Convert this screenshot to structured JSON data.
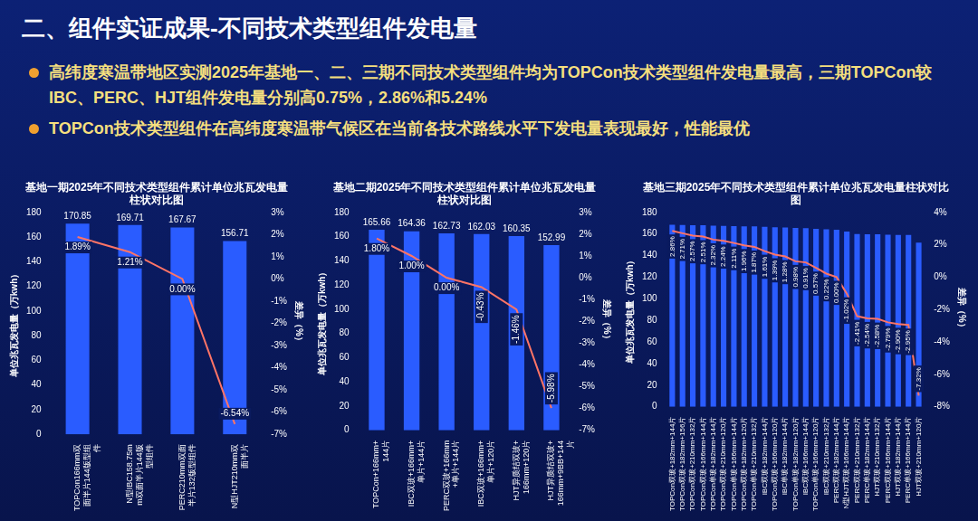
{
  "header": {
    "title": "二、组件实证成果-不同技术类型组件发电量"
  },
  "bullets": [
    "高纬度寒温带地区实测2025年基地一、二、三期不同技术类型组件均为TOPCon技术类型组件发电量最高，三期TOPCon较IBC、PERC、HJT组件发电量分别高0.75%，2.86%和5.24%",
    "TOPCon技术类型组件在高纬度寒温带气候区在当前各技术路线水平下发电量表现最好，性能最优"
  ],
  "chart_data": [
    {
      "type": "bar",
      "title": "基地一期2025年不同技术类型组件累计单位兆瓦发电量柱状对比图",
      "y_label": "单位兆瓦发电量（万kwh）",
      "y2_label": "差异（%）",
      "categories": [
        "TOPCon166mm双面半片144版型组件",
        "N型IBC158.75mm双面半片144版型组件",
        "PERC210mm双面半片132版型组件",
        "N型HJT210mm双面半片"
      ],
      "series": [
        {
          "type": "bar",
          "color": "#2a5cff",
          "values": [
            170.85,
            169.71,
            167.67,
            156.71
          ],
          "data_labels": true
        },
        {
          "type": "line",
          "axis": "y2",
          "color": "#ff7466",
          "marker": "none",
          "line_style": "solid",
          "data_labels": true,
          "values": [
            1.89,
            1.21,
            0,
            -6.54
          ],
          "value_labels": [
            "1.89%",
            "1.21%",
            "0.00%",
            "-6.54%"
          ]
        }
      ],
      "ylim": [
        0,
        180
      ],
      "yticks": [
        0,
        20,
        40,
        60,
        80,
        100,
        120,
        140,
        160,
        180
      ],
      "y2lim": [
        -7,
        3
      ],
      "y2ticks": [
        {
          "value": -7,
          "label": "-7%"
        },
        {
          "value": -6,
          "label": "-6%"
        },
        {
          "value": -5,
          "label": "-5%"
        },
        {
          "value": -4,
          "label": "-4%"
        },
        {
          "value": -3,
          "label": "-3%"
        },
        {
          "value": -2,
          "label": "-2%"
        },
        {
          "value": -1,
          "label": "-1%"
        },
        {
          "value": 0,
          "label": "0%"
        },
        {
          "value": 1,
          "label": "1%"
        },
        {
          "value": 2,
          "label": "2%"
        },
        {
          "value": 3,
          "label": "3%"
        }
      ],
      "grid": false
    },
    {
      "type": "bar",
      "title": "基地二期2025年不同技术类型组件累计单位兆瓦发电量柱状对比图",
      "y_label": "单位兆瓦发电量（万kwh）",
      "y2_label": "差异（%）",
      "categories": [
        "TOPCon+166mm+144片",
        "IBC双玻+166mm+单片+144片",
        "PERC双玻+166mm+单片+144片",
        "IBC双玻+166mm+单片+120片",
        "HJT异质结双玻+166mm+120片",
        "HJT异质结双玻+166mm+9BB+144片"
      ],
      "series": [
        {
          "type": "bar",
          "color": "#2a5cff",
          "values": [
            165.66,
            164.36,
            162.73,
            162.03,
            160.35,
            152.99
          ],
          "data_labels": true
        },
        {
          "type": "line",
          "axis": "y2",
          "color": "#ff7466",
          "marker": "none",
          "line_style": "solid",
          "data_labels": true,
          "values": [
            1.8,
            1.0,
            0,
            -0.43,
            -1.46,
            -5.98
          ],
          "value_labels": [
            "1.80%",
            "1.00%",
            "0.00%",
            "-0.43%",
            "-1.46%",
            "-5.98%"
          ]
        }
      ],
      "ylim": [
        0,
        180
      ],
      "yticks": [
        0,
        20,
        40,
        60,
        80,
        100,
        120,
        140,
        160,
        180
      ],
      "y2lim": [
        -7,
        3
      ],
      "y2ticks": [
        {
          "value": -7,
          "label": "-7%"
        },
        {
          "value": -6,
          "label": "-6%"
        },
        {
          "value": -5,
          "label": "-5%"
        },
        {
          "value": -4,
          "label": "-4%"
        },
        {
          "value": -3,
          "label": "-3%"
        },
        {
          "value": -2,
          "label": "-2%"
        },
        {
          "value": -1,
          "label": "-1%"
        },
        {
          "value": 0,
          "label": "0%"
        },
        {
          "value": 1,
          "label": "1%"
        },
        {
          "value": 2,
          "label": "2%"
        },
        {
          "value": 3,
          "label": "3%"
        }
      ],
      "grid": false
    },
    {
      "type": "bar",
      "title": "基地三期2025年不同技术类型组件累计单位兆瓦发电量柱状对比图",
      "y_label": "单位兆瓦发电量（万kwh）",
      "y2_label": "差异（%）",
      "categories": [
        "TOPCon双玻+182mm+144片",
        "TOPCon双玻+182mm+156片",
        "TOPCon双玻+210mm+132片",
        "TOPCon双玻+166mm+144片",
        "TOPCon单玻+182mm+144片",
        "TOPCon双玻+210mm+120片",
        "TOPCon单玻+166mm+144片",
        "TOPCon双玻+182mm+120片",
        "TOPCon单玻+210mm+132片",
        "IBC双玻+182mm+144片",
        "TOPCon双玻+166mm+120片",
        "IBC单玻+182mm+144片",
        "TOPCon单玻+182mm+120片",
        "IBC双玻+166mm+144片",
        "TOPCon单玻+166mm+120片",
        "IBC双玻+210mm+132片",
        "PERC双玻+182mm+144片",
        "N型HJT双玻+166mm+144片",
        "PERC双玻+210mm+132片",
        "PERC单玻+182mm+144片",
        "HJT双玻+210mm+132片",
        "PERC双玻+166mm+144片",
        "HJT双玻+182mm+144片",
        "PERC单玻+166mm+144片",
        "HJT双玻+210mm+120片"
      ],
      "series": [
        {
          "type": "bar",
          "color": "#2a5cff",
          "data_labels": false,
          "values": [
            168.59,
            168.34,
            168.11,
            168.01,
            167.7,
            167.57,
            167.36,
            167.11,
            166.96,
            166.54,
            166.18,
            166.0,
            165.51,
            165.39,
            164.83,
            164.26,
            163.9,
            162.23,
            159.95,
            159.74,
            159.67,
            159.33,
            159.15,
            159.07,
            151.9
          ]
        },
        {
          "type": "line",
          "axis": "y2",
          "color": "#ff7466",
          "marker": "none",
          "line_style": "solid",
          "data_labels": true,
          "values": [
            2.86,
            2.71,
            2.57,
            2.51,
            2.32,
            2.24,
            2.11,
            1.96,
            1.87,
            1.61,
            1.39,
            1.28,
            0.98,
            0.91,
            0.57,
            0.22,
            0,
            -1.02,
            -2.41,
            -2.54,
            -2.58,
            -2.79,
            -2.9,
            -2.95,
            -7.32
          ],
          "value_labels": [
            "2.86%",
            "2.71%",
            "2.57%",
            "2.51%",
            "2.32%",
            "2.24%",
            "2.11%",
            "1.96%",
            "1.87%",
            "1.61%",
            "1.39%",
            "1.28%",
            "0.98%",
            "0.91%",
            "0.57%",
            "0.22%",
            "0.00%",
            "-1.02%",
            "-2.41%",
            "-2.54%",
            "-2.58%",
            "-2.79%",
            "-2.90%",
            "-2.95%",
            "-7.32%"
          ]
        }
      ],
      "ylim": [
        0,
        180
      ],
      "yticks": [
        0,
        20,
        40,
        60,
        80,
        100,
        120,
        140,
        160,
        180
      ],
      "y2lim": [
        -8,
        4
      ],
      "y2ticks": [
        {
          "value": -8,
          "label": "-8%"
        },
        {
          "value": -6,
          "label": "-6%"
        },
        {
          "value": -4,
          "label": "-4%"
        },
        {
          "value": -2,
          "label": "-2%"
        },
        {
          "value": 0,
          "label": "0%"
        },
        {
          "value": 2,
          "label": "2%"
        },
        {
          "value": 4,
          "label": "4%"
        }
      ],
      "grid": false
    }
  ]
}
